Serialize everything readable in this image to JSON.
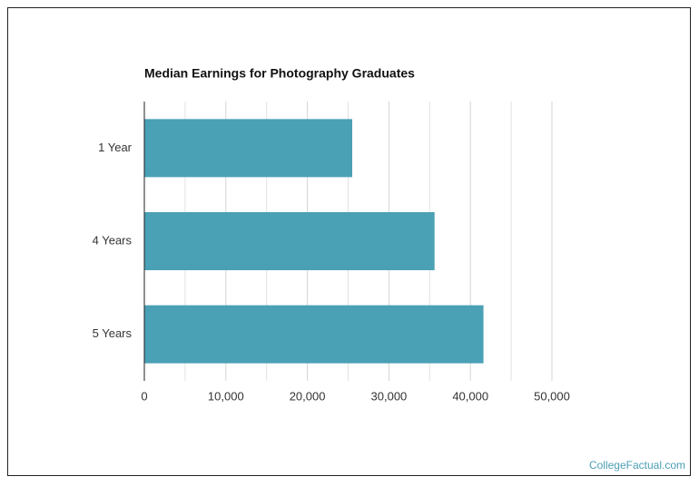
{
  "chart_data": {
    "type": "bar",
    "orientation": "horizontal",
    "title": "Median Earnings for Photography Graduates",
    "categories": [
      "1 Year",
      "4 Years",
      "5 Years"
    ],
    "values": [
      25500,
      35600,
      41600
    ],
    "color": "#4aa0b5",
    "xlim": [
      0,
      50000
    ],
    "xticks": [
      0,
      {
        "value": 10000,
        "label": "10,000"
      },
      {
        "value": 20000,
        "label": "20,000"
      },
      {
        "value": 30000,
        "label": "30,000"
      },
      {
        "value": 40000,
        "label": "40,000"
      },
      {
        "value": 50000,
        "label": "50,000"
      }
    ],
    "minor_xticks": [
      5000,
      15000,
      25000,
      35000,
      45000
    ],
    "grid": true,
    "source": "CollegeFactual.com"
  }
}
